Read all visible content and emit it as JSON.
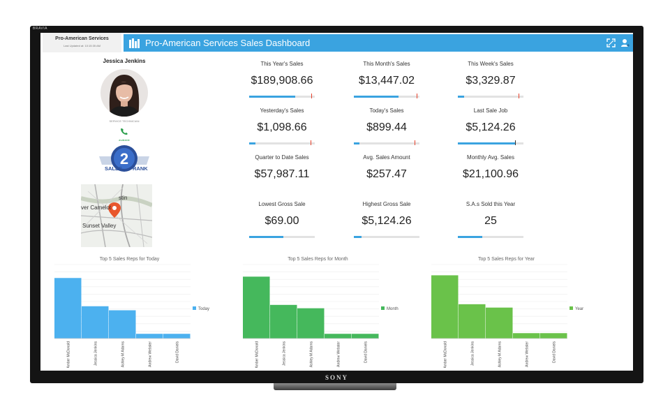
{
  "device": {
    "brand_top": "BRAVIA",
    "brand_bottom": "SONY"
  },
  "header": {
    "company_name": "Pro-American Services",
    "last_updated": "Last Updated at: 10:15:35 AM",
    "title": "Pro-American Services Sales Dashboard",
    "accent_color": "#3aa3e0"
  },
  "profile": {
    "name": "Jessica Jenkins",
    "role": "SERVICE TECHNICIAN",
    "phone_label": "available",
    "badge": {
      "rank": "2",
      "left_text": "SALES",
      "right_text": "RANK"
    },
    "map_labels": [
      "stin",
      "ver Camelot",
      "Sunset Valley"
    ]
  },
  "kpis": [
    {
      "label": "This Year's Sales",
      "value": "$189,908.66",
      "progress": 0.7,
      "target": 0.95
    },
    {
      "label": "This Month's Sales",
      "value": "$13,447.02",
      "progress": 0.68,
      "target": 0.96
    },
    {
      "label": "This Week's Sales",
      "value": "$3,329.87",
      "progress": 0.1,
      "target": 0.93
    },
    {
      "label": "Yesterday's Sales",
      "value": "$1,098.66",
      "progress": 0.1,
      "target": 0.94
    },
    {
      "label": "Today's Sales",
      "value": "$899.44",
      "progress": 0.09,
      "target": 0.93
    },
    {
      "label": "Last Sale Job",
      "value": "$5,124.26",
      "progress": 0.87,
      "target": 0.87
    },
    {
      "label": "Quarter to Date Sales",
      "value": "$57,987.11",
      "progress": null,
      "target": null
    },
    {
      "label": "Avg. Sales Amount",
      "value": "$257.47",
      "progress": null,
      "target": null
    },
    {
      "label": "Monthly Avg. Sales",
      "value": "$21,100.96",
      "progress": null,
      "target": null
    },
    {
      "label": "Lowest Gross Sale",
      "value": "$69.00",
      "progress": 0.52,
      "target": null
    },
    {
      "label": "Highest Gross Sale",
      "value": "$5,124.26",
      "progress": 0.12,
      "target": null
    },
    {
      "label": "S.A.s Sold this Year",
      "value": "25",
      "progress": 0.37,
      "target": null
    }
  ],
  "chart_data": [
    {
      "type": "bar",
      "title": "Top 5 Sales Reps for Today",
      "legend": "Today",
      "color": "#4cb1ef",
      "categories": [
        "Amber McDonald",
        "Jessica Jenkins",
        "Ashley M Adams",
        "Andrew Webster",
        "David Daniels"
      ],
      "values": [
        90,
        48,
        42,
        7,
        7
      ],
      "ylim": [
        0,
        110
      ],
      "legend_position": "right"
    },
    {
      "type": "bar",
      "title": "Top 5 Sales Reps for Month",
      "legend": "Month",
      "color": "#45b85c",
      "categories": [
        "Amber McDonald",
        "Jessica Jenkins",
        "Ashley M Adams",
        "Andrew Webster",
        "David Daniels"
      ],
      "values": [
        92,
        50,
        45,
        7,
        7
      ],
      "ylim": [
        0,
        110
      ],
      "legend_position": "right"
    },
    {
      "type": "bar",
      "title": "Top 5 Sales Reps for Year",
      "legend": "Year",
      "color": "#6ac24a",
      "categories": [
        "Amber McDonald",
        "Jessica Jenkins",
        "Ashley M Adams",
        "Andrew Webster",
        "David Daniels"
      ],
      "values": [
        94,
        51,
        46,
        8,
        8
      ],
      "ylim": [
        0,
        110
      ],
      "legend_position": "right"
    }
  ]
}
